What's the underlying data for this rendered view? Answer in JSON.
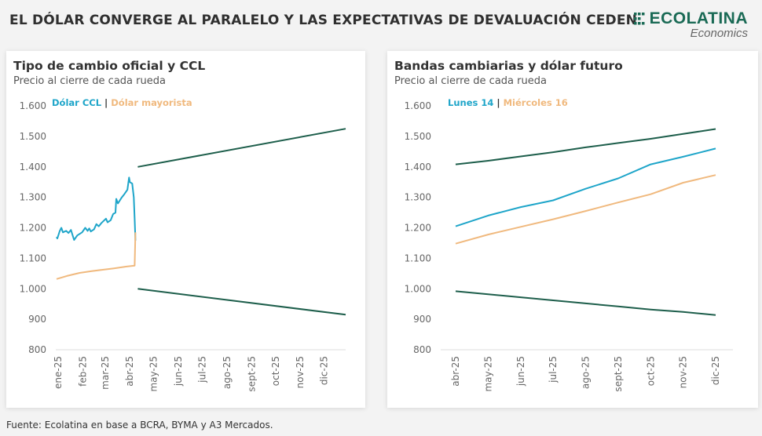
{
  "headline": "EL DÓLAR CONVERGE AL PARALELO Y LAS EXPECTATIVAS DE DEVALUACIÓN CEDEN",
  "logo": {
    "name": "ECOLATINA",
    "sub": "Economics"
  },
  "source": "Fuente: Ecolatina en base a BCRA, BYMA y A3 Mercados.",
  "colors": {
    "blue": "#1ea5c9",
    "orange": "#f0b97e",
    "band": "#1d5e4b"
  },
  "chart_data": [
    {
      "type": "line",
      "title": "Tipo de cambio oficial y CCL",
      "subtitle": "Precio al cierre de cada rueda",
      "ylim": [
        800,
        1600
      ],
      "yticks": [
        "800",
        "900",
        "1.000",
        "1.100",
        "1.200",
        "1.300",
        "1.400",
        "1.500",
        "1.600"
      ],
      "xlim": [
        "2025-01-01",
        "2025-12-31"
      ],
      "xticks": [
        {
          "date": "2025-01-01",
          "label": "ene-25"
        },
        {
          "date": "2025-02-01",
          "label": "feb-25"
        },
        {
          "date": "2025-03-01",
          "label": "mar-25"
        },
        {
          "date": "2025-04-01",
          "label": "abr-25"
        },
        {
          "date": "2025-05-01",
          "label": "may-25"
        },
        {
          "date": "2025-06-01",
          "label": "jun-25"
        },
        {
          "date": "2025-07-01",
          "label": "jul-25"
        },
        {
          "date": "2025-08-01",
          "label": "ago-25"
        },
        {
          "date": "2025-09-01",
          "label": "sept-25"
        },
        {
          "date": "2025-10-01",
          "label": "oct-25"
        },
        {
          "date": "2025-11-01",
          "label": "nov-25"
        },
        {
          "date": "2025-12-01",
          "label": "dic-25"
        }
      ],
      "legend": {
        "sep": "|",
        "items": [
          "Dólar CCL",
          "Dólar mayorista"
        ],
        "placement": "top-left"
      },
      "series": [
        {
          "name": "Dólar CCL",
          "color": "#1ea5c9",
          "points": [
            [
              "2025-01-02",
              1170
            ],
            [
              "2025-01-03",
              1165
            ],
            [
              "2025-01-06",
              1190
            ],
            [
              "2025-01-08",
              1200
            ],
            [
              "2025-01-10",
              1185
            ],
            [
              "2025-01-14",
              1190
            ],
            [
              "2025-01-17",
              1183
            ],
            [
              "2025-01-20",
              1193
            ],
            [
              "2025-01-24",
              1160
            ],
            [
              "2025-01-28",
              1175
            ],
            [
              "2025-02-03",
              1185
            ],
            [
              "2025-02-07",
              1200
            ],
            [
              "2025-02-10",
              1190
            ],
            [
              "2025-02-12",
              1198
            ],
            [
              "2025-02-14",
              1188
            ],
            [
              "2025-02-18",
              1195
            ],
            [
              "2025-02-21",
              1212
            ],
            [
              "2025-02-24",
              1205
            ],
            [
              "2025-02-27",
              1215
            ],
            [
              "2025-03-05",
              1230
            ],
            [
              "2025-03-07",
              1218
            ],
            [
              "2025-03-11",
              1225
            ],
            [
              "2025-03-14",
              1245
            ],
            [
              "2025-03-17",
              1250
            ],
            [
              "2025-03-18",
              1295
            ],
            [
              "2025-03-20",
              1280
            ],
            [
              "2025-03-25",
              1300
            ],
            [
              "2025-03-28",
              1310
            ],
            [
              "2025-04-01",
              1325
            ],
            [
              "2025-04-03",
              1365
            ],
            [
              "2025-04-04",
              1350
            ],
            [
              "2025-04-07",
              1345
            ],
            [
              "2025-04-09",
              1300
            ],
            [
              "2025-04-10",
              1230
            ],
            [
              "2025-04-11",
              1158
            ]
          ]
        },
        {
          "name": "Dólar mayorista",
          "color": "#f0b97e",
          "points": [
            [
              "2025-01-02",
              1032
            ],
            [
              "2025-01-15",
              1042
            ],
            [
              "2025-01-31",
              1052
            ],
            [
              "2025-02-15",
              1058
            ],
            [
              "2025-02-28",
              1062
            ],
            [
              "2025-03-15",
              1067
            ],
            [
              "2025-03-31",
              1073
            ],
            [
              "2025-04-10",
              1076
            ],
            [
              "2025-04-11",
              1185
            ]
          ]
        },
        {
          "color": "#1d5e4b",
          "points": [
            [
              "2025-04-14",
              1400
            ],
            [
              "2025-12-31",
              1525
            ]
          ]
        },
        {
          "color": "#1d5e4b",
          "points": [
            [
              "2025-04-14",
              1000
            ],
            [
              "2025-12-31",
              915
            ]
          ]
        }
      ]
    },
    {
      "type": "line",
      "title": "Bandas cambiarias y dólar futuro",
      "subtitle": "Precio al cierre de cada rueda",
      "ylim": [
        800,
        1600
      ],
      "yticks": [
        "800",
        "900",
        "1.000",
        "1.100",
        "1.200",
        "1.300",
        "1.400",
        "1.500",
        "1.600"
      ],
      "categories": [
        "abr-25",
        "may-25",
        "jun-25",
        "jul-25",
        "ago-25",
        "sept-25",
        "oct-25",
        "nov-25",
        "dic-25"
      ],
      "legend": {
        "sep": "|",
        "items": [
          "Lunes 14",
          "Miércoles 16"
        ],
        "placement": "top-left"
      },
      "series": [
        {
          "color": "#1d5e4b",
          "values": [
            1408,
            1420,
            1434,
            1448,
            1464,
            1478,
            1492,
            1508,
            1524
          ]
        },
        {
          "name": "Lunes 14",
          "color": "#1ea5c9",
          "values": [
            1205,
            1240,
            1268,
            1290,
            1328,
            1362,
            1408,
            1433,
            1460
          ]
        },
        {
          "name": "Miércoles 16",
          "color": "#f0b97e",
          "values": [
            1148,
            1178,
            1203,
            1228,
            1255,
            1283,
            1310,
            1348,
            1373
          ]
        },
        {
          "color": "#1d5e4b",
          "values": [
            992,
            982,
            972,
            962,
            952,
            942,
            932,
            924,
            914
          ]
        }
      ]
    }
  ]
}
